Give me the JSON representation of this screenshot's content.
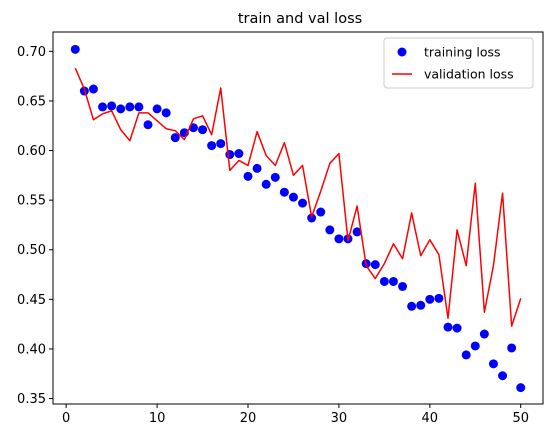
{
  "chart_data": {
    "type": "line",
    "title": "train and val loss",
    "xlabel": "",
    "ylabel": "",
    "xlim": [
      -1.45,
      52.45
    ],
    "ylim": [
      0.3445,
      0.7195
    ],
    "xticks": [
      0,
      10,
      20,
      30,
      40,
      50
    ],
    "yticks": [
      0.35,
      0.4,
      0.45,
      0.5,
      0.55,
      0.6,
      0.65,
      0.7
    ],
    "xtick_labels": [
      "0",
      "10",
      "20",
      "30",
      "40",
      "50"
    ],
    "ytick_labels": [
      "0.35",
      "0.40",
      "0.45",
      "0.50",
      "0.55",
      "0.60",
      "0.65",
      "0.70"
    ],
    "grid": false,
    "legend_position": "top-right",
    "x": [
      1,
      2,
      3,
      4,
      5,
      6,
      7,
      8,
      9,
      10,
      11,
      12,
      13,
      14,
      15,
      16,
      17,
      18,
      19,
      20,
      21,
      22,
      23,
      24,
      25,
      26,
      27,
      28,
      29,
      30,
      31,
      32,
      33,
      34,
      35,
      36,
      37,
      38,
      39,
      40,
      41,
      42,
      43,
      44,
      45,
      46,
      47,
      48,
      49,
      50
    ],
    "series": [
      {
        "name": "training loss",
        "style": "markers",
        "color": "#0000ff",
        "values": [
          0.702,
          0.66,
          0.662,
          0.644,
          0.645,
          0.642,
          0.644,
          0.644,
          0.626,
          0.642,
          0.638,
          0.613,
          0.618,
          0.623,
          0.621,
          0.605,
          0.607,
          0.596,
          0.597,
          0.574,
          0.582,
          0.566,
          0.573,
          0.558,
          0.553,
          0.547,
          0.532,
          0.538,
          0.52,
          0.511,
          0.511,
          0.518,
          0.486,
          0.485,
          0.468,
          0.468,
          0.463,
          0.443,
          0.444,
          0.45,
          0.451,
          0.422,
          0.421,
          0.394,
          0.403,
          0.415,
          0.385,
          0.373,
          0.401,
          0.361
        ]
      },
      {
        "name": "validation loss",
        "style": "line",
        "color": "#ff0000",
        "values": [
          0.683,
          0.662,
          0.631,
          0.637,
          0.64,
          0.621,
          0.61,
          0.638,
          0.638,
          0.63,
          0.622,
          0.62,
          0.611,
          0.632,
          0.635,
          0.616,
          0.663,
          0.58,
          0.59,
          0.585,
          0.619,
          0.595,
          0.585,
          0.608,
          0.575,
          0.585,
          0.533,
          0.559,
          0.587,
          0.597,
          0.509,
          0.544,
          0.484,
          0.471,
          0.486,
          0.506,
          0.491,
          0.537,
          0.494,
          0.51,
          0.495,
          0.431,
          0.52,
          0.484,
          0.567,
          0.437,
          0.484,
          0.557,
          0.423,
          0.451
        ]
      }
    ]
  }
}
